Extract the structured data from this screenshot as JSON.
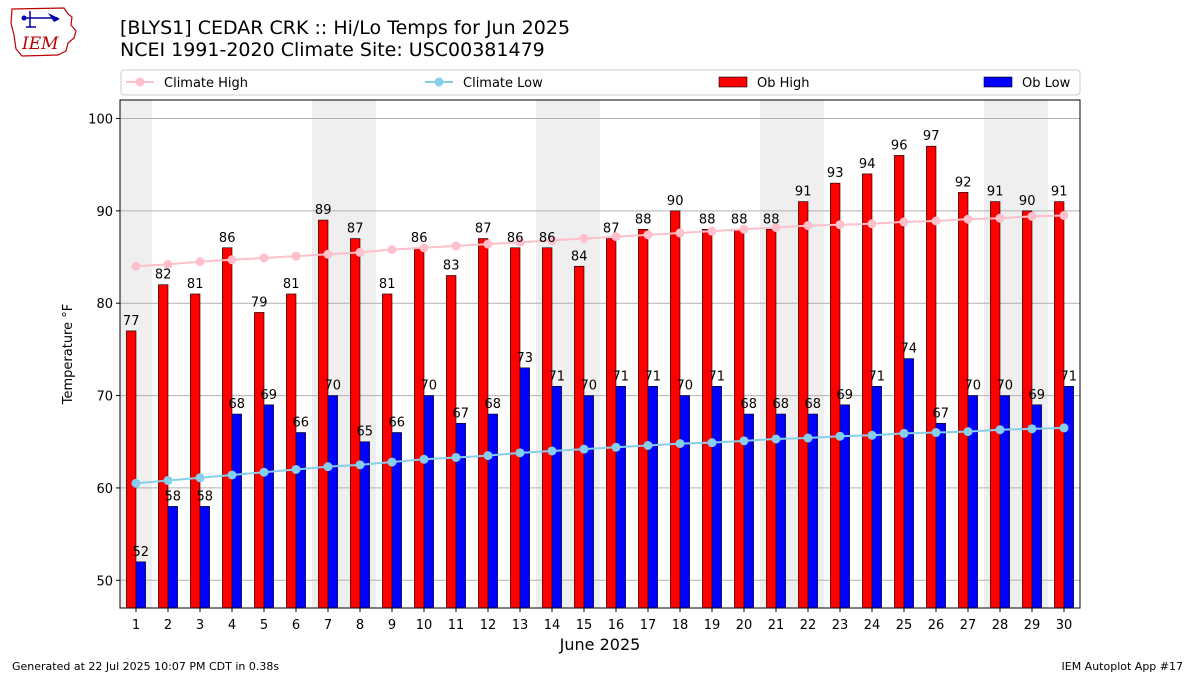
{
  "header": {
    "title_line1": "[BLYS1] CEDAR CRK :: Hi/Lo Temps for Jun 2025",
    "title_line2": "NCEI 1991-2020 Climate Site: USC00381479"
  },
  "logo": {
    "text": "IEM",
    "icon": "iem-logo-icon"
  },
  "footer": {
    "left": "Generated at 22 Jul 2025 10:07 PM CDT in 0.38s",
    "right": "IEM Autoplot App #17"
  },
  "chart_data": {
    "type": "bar",
    "xlabel": "June 2025",
    "ylabel": "Temperature °F",
    "ylim": [
      47,
      102
    ],
    "yticks": [
      50,
      60,
      70,
      80,
      90,
      100
    ],
    "grid": true,
    "legend_placement": "top",
    "categories": [
      "1",
      "2",
      "3",
      "4",
      "5",
      "6",
      "7",
      "8",
      "9",
      "10",
      "11",
      "12",
      "13",
      "14",
      "15",
      "16",
      "17",
      "18",
      "19",
      "20",
      "21",
      "22",
      "23",
      "24",
      "25",
      "26",
      "27",
      "28",
      "29",
      "30"
    ],
    "weekend_shaded_days": [
      1,
      7,
      8,
      14,
      15,
      21,
      22,
      28,
      29
    ],
    "series": [
      {
        "name": "Climate High",
        "kind": "line",
        "color": "#ffc0cb",
        "values": [
          84.0,
          84.2,
          84.5,
          84.7,
          84.9,
          85.1,
          85.3,
          85.5,
          85.8,
          86.0,
          86.2,
          86.4,
          86.6,
          86.8,
          87.0,
          87.2,
          87.4,
          87.6,
          87.8,
          88.0,
          88.2,
          88.4,
          88.5,
          88.6,
          88.8,
          88.9,
          89.1,
          89.2,
          89.4,
          89.5
        ]
      },
      {
        "name": "Climate Low",
        "kind": "line",
        "color": "#87ceeb",
        "values": [
          60.5,
          60.8,
          61.1,
          61.4,
          61.7,
          62.0,
          62.3,
          62.5,
          62.8,
          63.1,
          63.3,
          63.5,
          63.8,
          64.0,
          64.2,
          64.4,
          64.6,
          64.8,
          64.9,
          65.1,
          65.3,
          65.4,
          65.6,
          65.7,
          65.9,
          66.0,
          66.1,
          66.3,
          66.4,
          66.5
        ]
      },
      {
        "name": "Ob High",
        "kind": "bar",
        "color": "#ff0000",
        "values": [
          77,
          82,
          81,
          86,
          79,
          81,
          89,
          87,
          81,
          86,
          83,
          87,
          86,
          86,
          84,
          87,
          88,
          90,
          88,
          88,
          88,
          91,
          93,
          94,
          96,
          97,
          92,
          91,
          90,
          91
        ]
      },
      {
        "name": "Ob Low",
        "kind": "bar",
        "color": "#0000ff",
        "values": [
          52,
          58,
          58,
          68,
          69,
          66,
          70,
          65,
          66,
          70,
          67,
          68,
          73,
          71,
          70,
          71,
          71,
          70,
          71,
          68,
          68,
          68,
          69,
          71,
          74,
          67,
          70,
          70,
          69,
          71
        ]
      }
    ]
  }
}
